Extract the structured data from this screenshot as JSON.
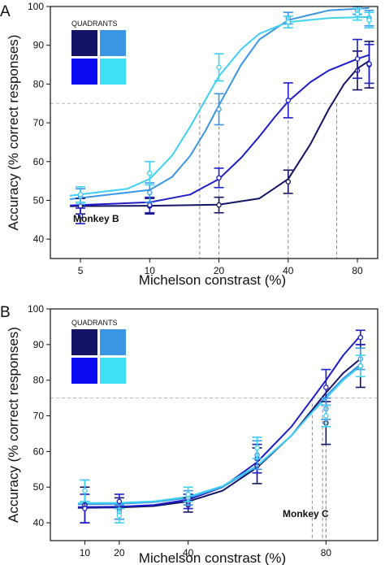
{
  "chart_data": [
    {
      "type": "scatter",
      "panel_label": "A",
      "annotation": "Monkey B",
      "legend_title": "QUADRANTS",
      "legend_position": "top-left",
      "xlabel": "Michelson constrast (%)",
      "ylabel": "Accuracy (% correct responses)",
      "x_scale": "log",
      "xlim": [
        3.7,
        98
      ],
      "ylim": [
        35,
        100
      ],
      "x_ticks": [
        5,
        10,
        20,
        40,
        80
      ],
      "y_ticks": [
        40,
        50,
        60,
        70,
        80,
        90,
        100
      ],
      "threshold_line": 75,
      "grid": false,
      "series": [
        {
          "color": "#141466",
          "x": [
            5,
            10,
            20,
            40,
            80,
            90
          ],
          "y": [
            48.5,
            48.5,
            48.8,
            54.8,
            83.5,
            85
          ],
          "err": [
            2,
            2,
            2,
            3,
            5,
            6
          ],
          "curve_x": [
            4.5,
            10,
            20,
            30,
            40,
            50,
            60,
            70,
            80,
            90
          ],
          "curve_y": [
            48.5,
            48.6,
            48.9,
            50.5,
            55.5,
            64.5,
            73.5,
            80,
            84,
            86
          ],
          "threshold_x": 65
        },
        {
          "color": "#1e1ec8",
          "x": [
            5,
            10,
            20,
            40,
            80,
            90
          ],
          "y": [
            46,
            48.8,
            55.8,
            75.8,
            86.5,
            85.2
          ],
          "err": [
            2,
            2,
            2.5,
            4.5,
            5,
            5
          ],
          "curve_x": [
            4.5,
            10,
            15,
            20,
            25,
            30,
            35,
            40,
            50,
            60,
            80,
            90
          ],
          "curve_y": [
            48.7,
            49.5,
            51.5,
            55.5,
            61,
            66.5,
            71.5,
            75.5,
            80.5,
            83.5,
            86.5,
            87.5
          ],
          "threshold_x": 40
        },
        {
          "color": "#3c96e6",
          "x": [
            5,
            10,
            20,
            40,
            80,
            90
          ],
          "y": [
            51,
            52,
            73.5,
            97,
            99,
            97
          ],
          "err": [
            2,
            2.5,
            4,
            1.5,
            1,
            2
          ],
          "curve_x": [
            4.5,
            10,
            12.5,
            15,
            17.5,
            20,
            25,
            30,
            40,
            60,
            90
          ],
          "curve_y": [
            50.3,
            52.7,
            56,
            61.5,
            68,
            74.5,
            85,
            91.5,
            96.5,
            99,
            99.6
          ],
          "threshold_x": 20
        },
        {
          "color": "#40d0f0",
          "x": [
            5,
            10,
            20,
            40,
            80,
            90
          ],
          "y": [
            51.5,
            57,
            84.3,
            96,
            98,
            96.5
          ],
          "err": [
            2,
            3,
            3.5,
            1.5,
            1.5,
            2
          ],
          "curve_x": [
            4.5,
            8,
            10,
            12.5,
            15,
            17.5,
            20,
            25,
            30,
            40,
            60,
            90
          ],
          "curve_y": [
            51.2,
            53,
            55.5,
            61.5,
            69,
            76,
            82,
            89,
            93,
            96,
            97,
            97.3
          ],
          "threshold_x": 16.5
        }
      ]
    },
    {
      "type": "scatter",
      "panel_label": "B",
      "annotation": "Monkey C",
      "legend_title": "QUADRANTS",
      "legend_position": "top-left",
      "xlabel": "Michelson constrast (%)",
      "ylabel": "Accuracy (% correct responses)",
      "xlim": [
        0,
        95
      ],
      "ylim": [
        35,
        100
      ],
      "x_ticks": [
        10,
        20,
        40,
        80
      ],
      "y_ticks": [
        40,
        50,
        60,
        70,
        80,
        90,
        100
      ],
      "threshold_line": 75,
      "grid": false,
      "series": [
        {
          "color": "#141466",
          "x": [
            10,
            20,
            40,
            60,
            80,
            90
          ],
          "y": [
            45,
            44,
            45,
            56,
            68,
            84
          ],
          "err": [
            5,
            3,
            2,
            5,
            6,
            6
          ],
          "curve_x": [
            8,
            20,
            30,
            40,
            50,
            60,
            70,
            75,
            80,
            85,
            90
          ],
          "curve_y": [
            44.2,
            44.3,
            44.7,
            46,
            49,
            55.5,
            64.5,
            70.5,
            76.5,
            82,
            86
          ],
          "threshold_x": 79
        },
        {
          "color": "#1e1ec8",
          "x": [
            10,
            20,
            40,
            60,
            80,
            90
          ],
          "y": [
            44,
            46,
            46,
            58,
            78,
            92
          ],
          "err": [
            4,
            2,
            2,
            4,
            5,
            2
          ],
          "curve_x": [
            8,
            20,
            30,
            40,
            50,
            60,
            70,
            75,
            80,
            85,
            90
          ],
          "curve_y": [
            44.4,
            44.5,
            45,
            46.5,
            50,
            57,
            67,
            73.5,
            80,
            87,
            92.5
          ],
          "threshold_x": 76
        },
        {
          "color": "#3c96e6",
          "x": [
            10,
            20,
            40,
            60,
            80,
            90
          ],
          "y": [
            49,
            43,
            47,
            59,
            72,
            86
          ],
          "err": [
            3,
            2,
            2,
            4,
            3,
            3
          ],
          "curve_x": [
            8,
            20,
            30,
            40,
            50,
            60,
            70,
            75,
            80,
            85,
            90
          ],
          "curve_y": [
            45.2,
            45.3,
            45.8,
            47,
            50,
            55.8,
            64.5,
            70,
            75.5,
            80.5,
            84.5
          ],
          "threshold_x": 80
        },
        {
          "color": "#40d0f0",
          "x": [
            10,
            20,
            40,
            60,
            80,
            90
          ],
          "y": [
            49,
            42,
            48,
            61,
            70,
            84
          ],
          "err": [
            3,
            2,
            2,
            3,
            3,
            3
          ],
          "curve_x": [
            8,
            20,
            30,
            40,
            50,
            60,
            70,
            75,
            80,
            85,
            90
          ],
          "curve_y": [
            45.5,
            45.6,
            46,
            47.3,
            50.3,
            56,
            64.5,
            70,
            75,
            80,
            84
          ],
          "threshold_x": 80
        }
      ]
    }
  ]
}
